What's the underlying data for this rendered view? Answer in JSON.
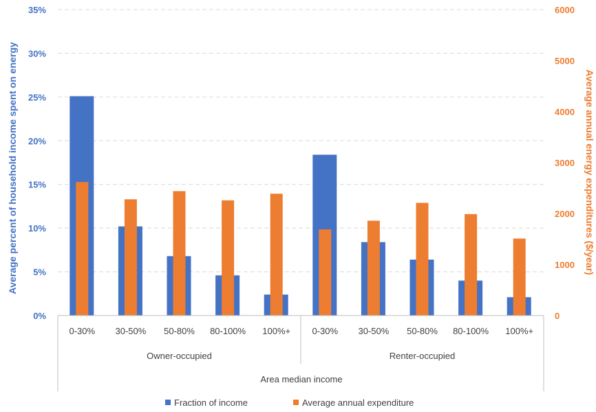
{
  "chart_data": {
    "type": "bar",
    "xlabel": "Area median income",
    "ylabel_left": "Average percent of household income spent on energy",
    "ylabel_right": "Average annual energy expenditures ($/year)",
    "groups": [
      {
        "name": "Owner-occupied",
        "categories": [
          "0-30%",
          "30-50%",
          "50-80%",
          "80-100%",
          "100%+"
        ]
      },
      {
        "name": "Renter-occupied",
        "categories": [
          "0-30%",
          "30-50%",
          "50-80%",
          "80-100%",
          "100%+"
        ]
      }
    ],
    "y_left": {
      "min": 0,
      "max": 35,
      "step": 5,
      "unit": "%",
      "ticks": [
        "0%",
        "5%",
        "10%",
        "15%",
        "20%",
        "25%",
        "30%",
        "35%"
      ]
    },
    "y_right": {
      "min": 0,
      "max": 6000,
      "step": 1000,
      "ticks": [
        "0",
        "1000",
        "2000",
        "3000",
        "4000",
        "5000",
        "6000"
      ]
    },
    "grid": true,
    "legend_position": "bottom",
    "series": [
      {
        "name": "Fraction of income",
        "axis": "left",
        "color": "#4472c4",
        "values": [
          25.1,
          10.2,
          6.8,
          4.6,
          2.4,
          18.4,
          8.4,
          6.4,
          4.0,
          2.1
        ]
      },
      {
        "name": "Average annual expenditure",
        "axis": "right",
        "color": "#ed7d31",
        "values": [
          2620,
          2280,
          2440,
          2260,
          2390,
          1690,
          1860,
          2210,
          1990,
          1510
        ]
      }
    ]
  }
}
